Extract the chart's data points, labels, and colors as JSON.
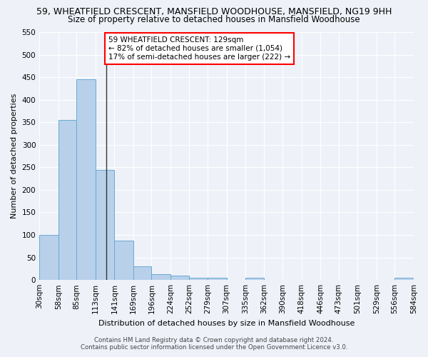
{
  "title": "59, WHEATFIELD CRESCENT, MANSFIELD WOODHOUSE, MANSFIELD, NG19 9HH",
  "subtitle": "Size of property relative to detached houses in Mansfield Woodhouse",
  "xlabel": "Distribution of detached houses by size in Mansfield Woodhouse",
  "ylabel": "Number of detached properties",
  "footer_line1": "Contains HM Land Registry data © Crown copyright and database right 2024.",
  "footer_line2": "Contains public sector information licensed under the Open Government Licence v3.0.",
  "bin_edges": [
    30,
    58,
    85,
    113,
    141,
    169,
    196,
    224,
    252,
    279,
    307,
    335,
    362,
    390,
    418,
    446,
    473,
    501,
    529,
    556,
    584
  ],
  "bar_heights": [
    100,
    355,
    445,
    245,
    88,
    30,
    13,
    9,
    5,
    5,
    0,
    5,
    0,
    0,
    0,
    0,
    0,
    0,
    0,
    5
  ],
  "bar_color": "#b8d0ea",
  "bar_edge_color": "#6aaad4",
  "property_size": 129,
  "property_line_color": "#333333",
  "ylim": [
    0,
    550
  ],
  "yticks": [
    0,
    50,
    100,
    150,
    200,
    250,
    300,
    350,
    400,
    450,
    500,
    550
  ],
  "annotation_text": "59 WHEATFIELD CRESCENT: 129sqm\n← 82% of detached houses are smaller (1,054)\n17% of semi-detached houses are larger (222) →",
  "annotation_box_color": "white",
  "annotation_box_edge_color": "red",
  "bg_color": "#eef2f8",
  "grid_color": "#ffffff",
  "title_fontsize": 9,
  "subtitle_fontsize": 8.5,
  "axis_label_fontsize": 8,
  "tick_fontsize": 7.5,
  "annotation_fontsize": 7.5,
  "xtick_labels": [
    "30sqm",
    "58sqm",
    "85sqm",
    "113sqm",
    "141sqm",
    "169sqm",
    "196sqm",
    "224sqm",
    "252sqm",
    "279sqm",
    "307sqm",
    "335sqm",
    "362sqm",
    "390sqm",
    "418sqm",
    "446sqm",
    "473sqm",
    "501sqm",
    "529sqm",
    "556sqm",
    "584sqm"
  ]
}
